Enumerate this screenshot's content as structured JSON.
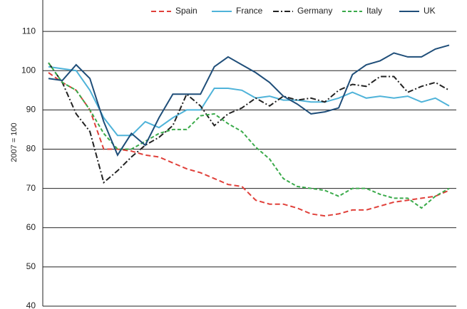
{
  "chart_data": {
    "type": "line",
    "y_label": "2007 = 100",
    "categories": [
      null,
      null,
      null,
      null,
      null,
      null,
      null,
      null,
      null,
      null,
      null,
      null,
      null,
      null,
      null,
      null,
      null,
      null,
      null,
      null,
      null,
      null,
      null,
      null,
      null,
      null,
      null,
      null,
      null,
      null
    ],
    "ylim": [
      40,
      118
    ],
    "yticks": [
      40,
      50,
      60,
      70,
      80,
      90,
      100,
      110
    ],
    "grid": true,
    "series": [
      {
        "name": "Spain",
        "color": "#e0403a",
        "dash": "7,4",
        "values": [
          99.5,
          97,
          95,
          90,
          80,
          80,
          79.5,
          78.5,
          78,
          76.5,
          75,
          74,
          72.5,
          71,
          70.5,
          67,
          66,
          66,
          65,
          63.5,
          63,
          63.5,
          64.5,
          64.5,
          65.5,
          66.5,
          67,
          67.5,
          68,
          69.5
        ]
      },
      {
        "name": "France",
        "color": "#4fb3d9",
        "dash": "",
        "values": [
          101,
          100.5,
          100,
          95,
          88,
          83.5,
          83.5,
          87,
          85.5,
          88,
          90,
          90,
          95.5,
          95.5,
          95,
          93,
          93.5,
          92.5,
          92.5,
          92,
          92,
          93,
          94.5,
          93,
          93.5,
          93,
          93.5,
          92,
          93,
          91
        ]
      },
      {
        "name": "Germany",
        "color": "#222222",
        "dash": "8,3,2,3",
        "values": [
          102,
          97,
          89,
          84.5,
          71.5,
          74.5,
          78,
          81,
          83,
          86,
          94,
          91,
          86,
          89,
          90.5,
          93,
          91,
          93.5,
          92.5,
          93,
          92,
          95,
          96.5,
          96,
          98.5,
          98.5,
          94.5,
          96,
          97,
          95
        ]
      },
      {
        "name": "Italy",
        "color": "#3aaa4a",
        "dash": "5,3",
        "values": [
          102,
          97,
          95,
          90,
          84,
          80,
          80,
          82,
          84,
          85,
          85,
          88.5,
          89,
          86.5,
          84.5,
          80.5,
          77.5,
          72.5,
          70.5,
          70,
          69.5,
          68,
          70,
          70,
          68.5,
          67.5,
          67.5,
          65,
          68,
          70
        ]
      },
      {
        "name": "UK",
        "color": "#1f4e79",
        "dash": "",
        "values": [
          98,
          97.5,
          101.5,
          98,
          87,
          78.5,
          84,
          81,
          88,
          94,
          94,
          94,
          101,
          103.5,
          101.5,
          99.5,
          97,
          93.5,
          91.5,
          89,
          89.5,
          90.5,
          99,
          101.5,
          102.5,
          104.5,
          103.5,
          103.5,
          105.5,
          106.5
        ]
      }
    ]
  }
}
